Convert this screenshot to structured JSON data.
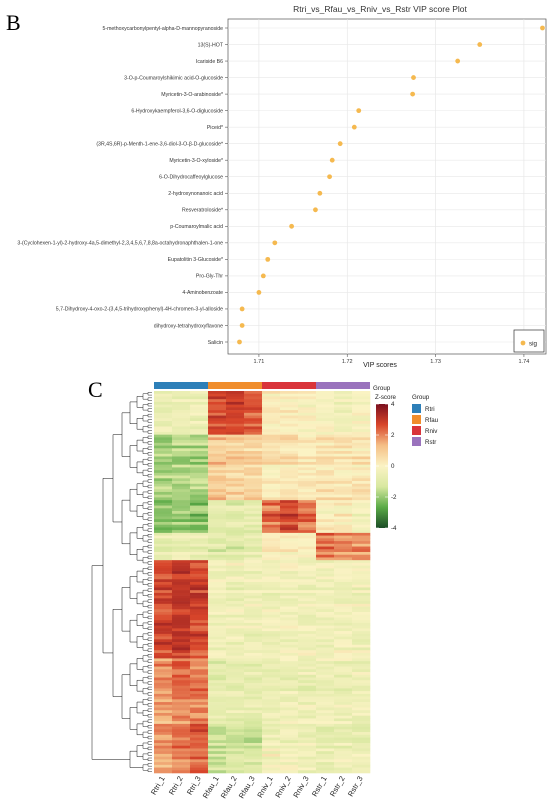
{
  "panels": {
    "b": "B",
    "c": "C"
  },
  "vip_chart": {
    "type": "scatter",
    "title": "Rtri_vs_Rfau_vs_Rniv_vs_Rstr VIP score Plot",
    "xlabel": "VIP scores",
    "ylabel": "",
    "xlim": [
      1.7065,
      1.7425
    ],
    "xticks": [
      1.71,
      1.72,
      1.73,
      1.74
    ],
    "xtick_labels": [
      "1.71",
      "1.72",
      "1.73",
      "1.74"
    ],
    "grid": true,
    "legend_position": "bottom-right",
    "legend_label": "sig",
    "point_color": "#f5b94f",
    "categories": [
      "5-methoxycarbonylpentyl-alpha-D-mannopyranoside",
      "13(S)-HOT",
      "Icariside B6",
      "3-O-p-Coumaroylshikimic acid-O-glucoside",
      "Myricetin-3-O-arabinoside*",
      "6-Hydroxykaempferol-3,6-O-diglucoside",
      "Piceid*",
      "(3R,4S,6R)-p-Menth-1-ene-3,6-diol-3-O-β-D-glucoside*",
      "Myricetin-3-O-xyloside*",
      "6-O-Dihydrocaffeoylglucose",
      "2-hydroxynonanoic acid",
      "Resveratroloside*",
      "p-Coumaroylmalic acid",
      "3-(Cyclohexen-1-yl)-2-hydroxy-4a,5-dimethyl-2,3,4,5,6,7,8,8a-octahydronaphthalen-1-one",
      "Eupatolitin 3-Glucoside*",
      "Pro-Gly-Thr",
      "4-Aminobenzoate",
      "5,7-Dihydroxy-4-oxo-2-(3,4,5-trihydroxyphenyl)-4H-chromen-3-yl-alloside",
      "dihydroxy-tetrahydroxyflavone",
      "Salicin"
    ],
    "values": [
      1.7421,
      1.735,
      1.7325,
      1.7275,
      1.7274,
      1.7213,
      1.7208,
      1.7192,
      1.7183,
      1.718,
      1.7169,
      1.7164,
      1.7137,
      1.7118,
      1.711,
      1.7105,
      1.71,
      1.7081,
      1.7081,
      1.7078
    ]
  },
  "heatmap": {
    "type": "heatmap",
    "column_labels": [
      "Rtri_1",
      "Rtri_2",
      "Rtri_3",
      "Rfau_1",
      "Rfau_2",
      "Rfau_3",
      "Rniv_1",
      "Rniv_2",
      "Rniv_3",
      "Rstr_1",
      "Rstr_2",
      "Rstr_3"
    ],
    "column_group_title": "Group",
    "colorbar_title": "Z-score",
    "colorbar_ticks": [
      4,
      2,
      0,
      -2,
      -4
    ],
    "colorbar_tick_labels": [
      "4",
      "2",
      "0",
      "-2",
      "-4"
    ],
    "colorbar_range": [
      -4,
      4
    ],
    "colorscale": [
      "#1b4d26",
      "#5aaa46",
      "#d8e8a0",
      "#fbf3c4",
      "#f5bf86",
      "#d8452a",
      "#7a0f1e"
    ],
    "legend_title": "Group",
    "groups": [
      {
        "name": "Rtri",
        "color": "#2d7fb8"
      },
      {
        "name": "Rfau",
        "color": "#f08d2c"
      },
      {
        "name": "Rniv",
        "color": "#d9343a"
      },
      {
        "name": "Rstr",
        "color": "#9a73bd"
      }
    ],
    "row_clusters": [
      {
        "rows": 16,
        "pattern": [
          -0.6,
          -0.6,
          -0.6,
          2.6,
          2.8,
          2.4,
          0.2,
          0.2,
          0.0,
          -0.2,
          -0.3,
          -0.2
        ]
      },
      {
        "rows": 24,
        "pattern": [
          -1.8,
          -1.8,
          -1.7,
          1.0,
          0.8,
          0.8,
          0.3,
          0.4,
          0.2,
          0.4,
          0.3,
          0.4
        ]
      },
      {
        "rows": 12,
        "pattern": [
          -2.2,
          -2.1,
          -2.2,
          -0.8,
          -0.9,
          -0.8,
          2.2,
          2.6,
          2.0,
          0.1,
          0.0,
          -0.2
        ]
      },
      {
        "rows": 10,
        "pattern": [
          -0.6,
          -0.6,
          -0.6,
          -0.9,
          -0.9,
          -0.8,
          0.0,
          0.2,
          0.0,
          2.2,
          2.0,
          1.8
        ]
      },
      {
        "rows": 36,
        "pattern": [
          2.8,
          3.0,
          2.8,
          -0.5,
          -0.5,
          -0.5,
          -0.5,
          -0.4,
          -0.5,
          -0.5,
          -0.4,
          -0.4
        ]
      },
      {
        "rows": 22,
        "pattern": [
          1.8,
          2.2,
          2.0,
          -0.8,
          -0.7,
          -0.8,
          -0.6,
          -0.6,
          -0.6,
          -0.5,
          -0.6,
          -0.5
        ]
      },
      {
        "rows": 20,
        "pattern": [
          1.5,
          1.9,
          2.4,
          -1.3,
          -1.2,
          -1.2,
          -0.3,
          -0.3,
          -0.4,
          -0.6,
          -0.5,
          -0.5
        ]
      }
    ]
  }
}
